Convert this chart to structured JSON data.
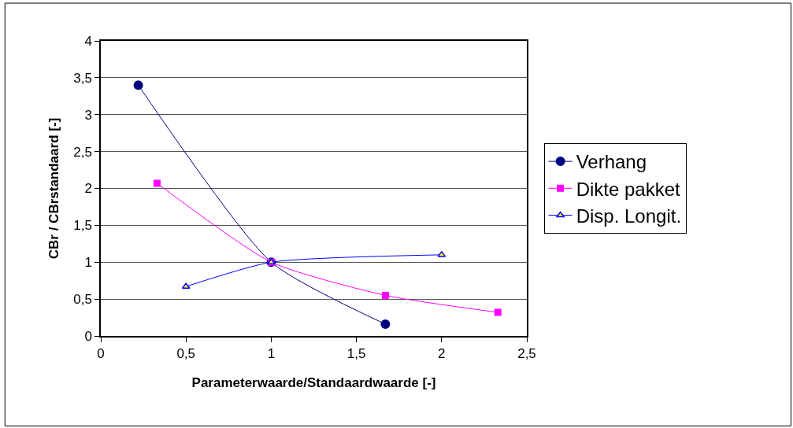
{
  "chart_data": {
    "type": "line",
    "xlabel": "Parameterwaarde/Standaardwaarde [-]",
    "ylabel": "CBr / CBrstandaard [-]",
    "xlim": [
      0,
      2.5
    ],
    "xticks": [
      0,
      {
        "value": 0.5,
        "label": "0,5"
      },
      1,
      {
        "value": 1.5,
        "label": "1,5"
      },
      2,
      {
        "value": 2.5,
        "label": "2,5"
      }
    ],
    "ylim": [
      0,
      4
    ],
    "yticks": [
      0,
      {
        "value": 0.5,
        "label": "0,5"
      },
      1,
      {
        "value": 1.5,
        "label": "1,5"
      },
      2,
      {
        "value": 2.5,
        "label": "2,5"
      },
      3,
      {
        "value": 3.5,
        "label": "3,5"
      },
      4
    ],
    "grid": "y",
    "legend": "right",
    "line_style": "solid",
    "series": [
      {
        "name": "Verhang",
        "color": "#000080",
        "marker": "circle",
        "x": [
          0.22,
          1,
          1.67
        ],
        "values": [
          3.4,
          1.0,
          0.16
        ]
      },
      {
        "name": "Dikte pakket",
        "color": "#ff00ff",
        "marker": "square",
        "x": [
          0.33,
          1,
          1.67,
          2.33
        ],
        "values": [
          2.07,
          1.0,
          0.55,
          0.32
        ]
      },
      {
        "name": "Disp. Longit.",
        "color": "#0000ff",
        "marker": "triangle",
        "x": [
          0.5,
          1,
          2
        ],
        "values": [
          0.67,
          1.0,
          1.1
        ]
      }
    ]
  }
}
